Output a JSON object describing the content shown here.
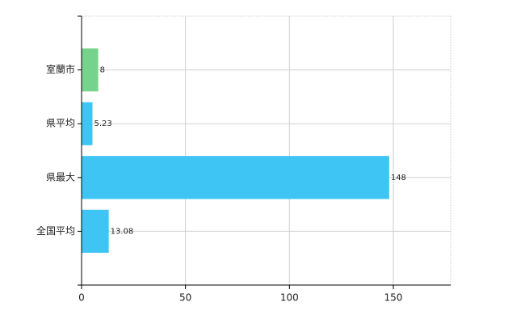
{
  "chart_data": {
    "type": "bar",
    "orientation": "horizontal",
    "categories": [
      "室蘭市",
      "県平均",
      "県最大",
      "全国平均"
    ],
    "values": [
      8,
      5.23,
      148,
      13.08
    ],
    "colors": [
      "#76d38c",
      "#3ec5f4",
      "#3ec5f4",
      "#3ec5f4"
    ],
    "xlim": [
      0,
      177.6
    ],
    "xticks": [
      0,
      50,
      100,
      150
    ],
    "grid": true
  }
}
